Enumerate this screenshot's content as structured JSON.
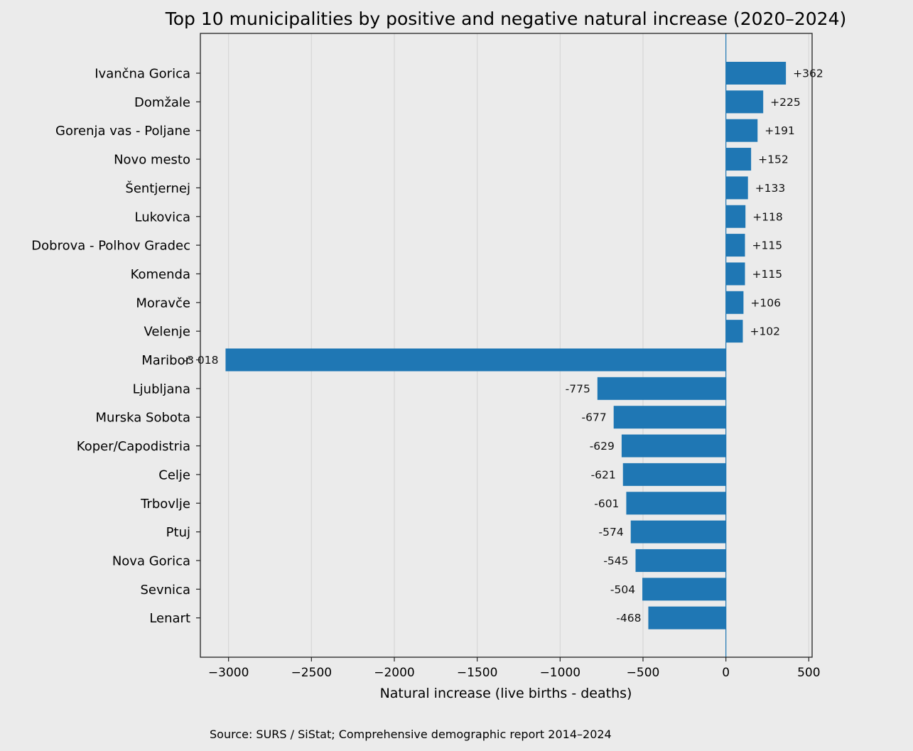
{
  "chart_data": {
    "type": "bar",
    "orientation": "horizontal",
    "title": "Top 10 municipalities by positive and negative natural increase (2020–2024)",
    "xlabel": "Natural increase (live births - deaths)",
    "ylabel": "",
    "xlim": [
      -3170,
      520
    ],
    "xticks": [
      -3000,
      -2500,
      -2000,
      -1500,
      -1000,
      -500,
      0,
      500
    ],
    "xtick_labels": [
      "−3000",
      "−2500",
      "−2000",
      "−1500",
      "−1000",
      "−500",
      "0",
      "500"
    ],
    "grid": "vertical",
    "bar_color": "#1f77b4",
    "categories": [
      "Ivančna Gorica",
      "Domžale",
      "Gorenja vas - Poljane",
      "Novo mesto",
      "Šentjernej",
      "Lukovica",
      "Dobrova - Polhov Gradec",
      "Komenda",
      "Moravče",
      "Velenje",
      "Maribor",
      "Ljubljana",
      "Murska Sobota",
      "Koper/Capodistria",
      "Celje",
      "Trbovlje",
      "Ptuj",
      "Nova Gorica",
      "Sevnica",
      "Lenart"
    ],
    "values": [
      362,
      225,
      191,
      152,
      133,
      118,
      115,
      115,
      106,
      102,
      -3018,
      -775,
      -677,
      -629,
      -621,
      -601,
      -574,
      -545,
      -504,
      -468
    ],
    "value_labels": [
      "+362",
      "+225",
      "+191",
      "+152",
      "+133",
      "+118",
      "+115",
      "+115",
      "+106",
      "+102",
      "-3 018",
      "-775",
      "-677",
      "-629",
      "-621",
      "-601",
      "-574",
      "-545",
      "-504",
      "-468"
    ]
  },
  "footer": {
    "source": "Source: SURS / SiStat; Comprehensive demographic report 2014–2024"
  }
}
